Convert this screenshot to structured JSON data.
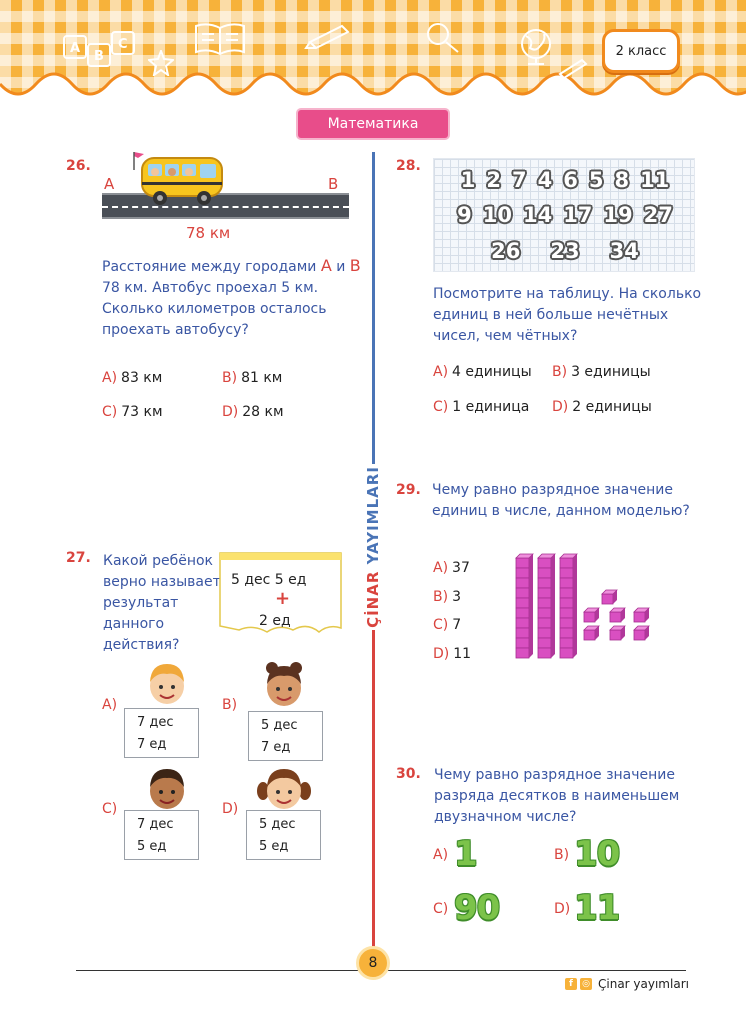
{
  "header": {
    "grade": "2 класс",
    "subject": "Математика"
  },
  "brand": {
    "vertical_part1": "ÇİNAR",
    "vertical_part2": "YAYIMLARI"
  },
  "q26": {
    "number": "26.",
    "city_a": "A",
    "city_b": "B",
    "distance": "78 км",
    "text": {
      "line1_pre": "Расстояние между городами ",
      "city_a": "A",
      "and": " и ",
      "city_b": "B",
      "line2": "78 км. Автобус проехал 5 км.",
      "line3": "Сколько километров осталось",
      "line4": "проехать автобусу?"
    },
    "options": [
      {
        "letter": "A)",
        "value": "83 км"
      },
      {
        "letter": "B)",
        "value": "81 км"
      },
      {
        "letter": "C)",
        "value": "73 км"
      },
      {
        "letter": "D)",
        "value": "28 км"
      }
    ]
  },
  "q27": {
    "number": "27.",
    "text": [
      "Какой ребёнок",
      "верно называет",
      "результат",
      "данного",
      "действия?"
    ],
    "sticky": {
      "line1": "5 дес  5 ед",
      "plus": "+",
      "line2": "2 ед"
    },
    "options": [
      {
        "letter": "A)",
        "line1": "7 дес",
        "line2": "7 ед"
      },
      {
        "letter": "B)",
        "line1": "5 дес",
        "line2": "7 ед"
      },
      {
        "letter": "C)",
        "line1": "7 дес",
        "line2": "5 ед"
      },
      {
        "letter": "D)",
        "line1": "5 дес",
        "line2": "5 ед"
      }
    ]
  },
  "q28": {
    "number": "28.",
    "table_rows": [
      [
        "1",
        "2",
        "7",
        "4",
        "6",
        "5",
        "8",
        "11"
      ],
      [
        "9",
        "10",
        "14",
        "17",
        "19",
        "27"
      ],
      [
        "26",
        "23",
        "34"
      ]
    ],
    "text": [
      "Посмотрите на таблицу. На сколько",
      "единиц в ней больше нечётных",
      "чисел, чем чётных?"
    ],
    "options": [
      {
        "letter": "A)",
        "value": "4 единицы"
      },
      {
        "letter": "B)",
        "value": "3 единицы"
      },
      {
        "letter": "C)",
        "value": "1 единица"
      },
      {
        "letter": "D)",
        "value": "2 единицы"
      }
    ]
  },
  "q29": {
    "number": "29.",
    "text": [
      "Чему равно разрядное значение",
      "единиц в числе, данном моделью?"
    ],
    "options": [
      {
        "letter": "A)",
        "value": "37"
      },
      {
        "letter": "B)",
        "value": "3"
      },
      {
        "letter": "C)",
        "value": "7"
      },
      {
        "letter": "D)",
        "value": "11"
      }
    ],
    "model": {
      "tens": 3,
      "ones": 7
    }
  },
  "q30": {
    "number": "30.",
    "text": [
      "Чему равно разрядное значение",
      "разряда десятков в наименьшем",
      "двузначном числе?"
    ],
    "options": [
      {
        "letter": "A)",
        "value": "1"
      },
      {
        "letter": "B)",
        "value": "10"
      },
      {
        "letter": "C)",
        "value": "90"
      },
      {
        "letter": "D)",
        "value": "11"
      }
    ]
  },
  "footer": {
    "page": "8",
    "brand": "Çinar yayımları",
    "icons": [
      "facebook-icon",
      "instagram-icon"
    ]
  },
  "colors": {
    "accent_red": "#d9443e",
    "text_blue": "#3a56a3",
    "header_orange": "#f7b23a",
    "subject_pink": "#e84d8a",
    "cube_pink": "#d94fc1"
  }
}
